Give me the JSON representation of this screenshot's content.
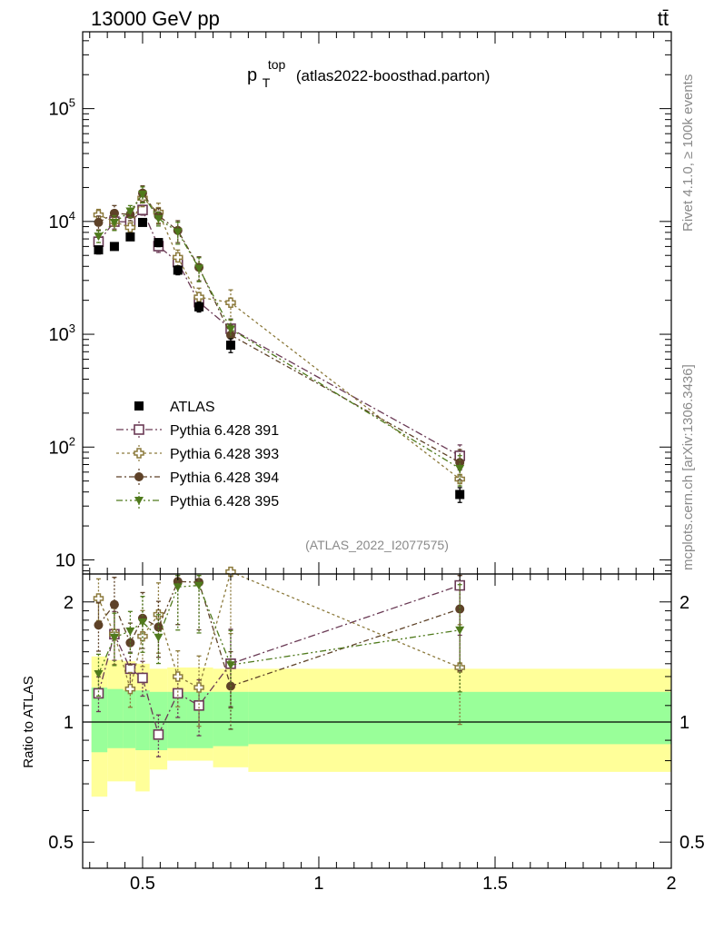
{
  "header": {
    "energy_label": "13000 GeV pp",
    "process_label": "tt̄"
  },
  "side_text": {
    "rivet": "Rivet 4.1.0, ≥ 100k events",
    "source": "mcplots.cern.ch [arXiv:1306.3436]"
  },
  "chart_data": {
    "type": "scatter",
    "title": {
      "main": "p",
      "sup": "top",
      "sub": "T",
      "paren": "(atlas2022-boosthad.parton)"
    },
    "analysis_id": "(ATLAS_2022_I2077575)",
    "x_ticks": [
      0.5,
      1,
      1.5,
      2
    ],
    "x_tick_labels": [
      "0.5",
      "1",
      "1.5",
      "2"
    ],
    "x_range": [
      0.33,
      2.0
    ],
    "main": {
      "yscale": "log",
      "ylim": [
        7.5,
        480000
      ],
      "y_ticks": [
        10,
        100,
        1000,
        10000,
        100000
      ],
      "y_tick_labels": [
        {
          "base": "10",
          "exp": ""
        },
        {
          "base": "10",
          "exp": "2"
        },
        {
          "base": "10",
          "exp": "3"
        },
        {
          "base": "10",
          "exp": "4"
        },
        {
          "base": "10",
          "exp": "5"
        }
      ]
    },
    "ratio": {
      "ylabel": "Ratio to ATLAS",
      "yscale": "log",
      "ylim": [
        0.43,
        2.35
      ],
      "y_ticks": [
        0.5,
        1,
        2
      ],
      "y_tick_labels": [
        "0.5",
        "1",
        "2"
      ]
    },
    "bins": [
      {
        "lo": 0.355,
        "hi": 0.4
      },
      {
        "lo": 0.4,
        "hi": 0.445
      },
      {
        "lo": 0.445,
        "hi": 0.48
      },
      {
        "lo": 0.48,
        "hi": 0.52
      },
      {
        "lo": 0.52,
        "hi": 0.57
      },
      {
        "lo": 0.57,
        "hi": 0.625
      },
      {
        "lo": 0.625,
        "hi": 0.7
      },
      {
        "lo": 0.7,
        "hi": 0.8
      },
      {
        "lo": 0.8,
        "hi": 2.0
      }
    ],
    "bands": {
      "green_lo": [
        0.84,
        0.86,
        0.86,
        0.85,
        0.85,
        0.86,
        0.86,
        0.87,
        0.88
      ],
      "green_hi": [
        1.22,
        1.21,
        1.2,
        1.2,
        1.19,
        1.19,
        1.19,
        1.19,
        1.19
      ],
      "yellow_lo": [
        0.65,
        0.71,
        0.71,
        0.67,
        0.76,
        0.8,
        0.8,
        0.77,
        0.75
      ],
      "yellow_hi": [
        1.46,
        1.43,
        1.42,
        1.4,
        1.36,
        1.37,
        1.37,
        1.36,
        1.36
      ]
    },
    "reference": {
      "name": "ATLAS",
      "color": "#000000",
      "marker": "square",
      "x": [
        0.375,
        0.42,
        0.465,
        0.5,
        0.545,
        0.6,
        0.66,
        0.75,
        1.4
      ],
      "y": [
        5600,
        6000,
        7300,
        9800,
        6500,
        3700,
        1750,
        800,
        38
      ],
      "err": [
        0.08,
        0.07,
        0.07,
        0.07,
        0.08,
        0.09,
        0.1,
        0.14,
        0.15
      ]
    },
    "series": [
      {
        "name": "Pythia 6.428 391",
        "color": "#6a3a55",
        "marker": "open-square",
        "dash": "8,3,2,3",
        "x": [
          0.375,
          0.42,
          0.465,
          0.5,
          0.545,
          0.6,
          0.66,
          0.75,
          1.4
        ],
        "ratio": [
          1.18,
          1.66,
          1.36,
          1.29,
          0.93,
          1.18,
          1.1,
          1.4,
          2.2
        ],
        "ratio_err": [
          0.1,
          0.14,
          0.1,
          0.1,
          0.12,
          0.13,
          0.16,
          0.22,
          0.25
        ]
      },
      {
        "name": "Pythia 6.428 393",
        "color": "#8c7a3c",
        "marker": "open-cross",
        "dash": "3,3",
        "x": [
          0.375,
          0.42,
          0.465,
          0.5,
          0.545,
          0.6,
          0.66,
          0.75,
          1.4
        ],
        "ratio": [
          2.04,
          1.66,
          1.21,
          1.64,
          1.86,
          1.3,
          1.22,
          2.38,
          1.37
        ],
        "ratio_err": [
          0.12,
          0.16,
          0.1,
          0.16,
          0.2,
          0.16,
          0.2,
          0.3,
          0.28
        ]
      },
      {
        "name": "Pythia 6.428 394",
        "color": "#5e4228",
        "marker": "dot",
        "dash": "6,3,2,3",
        "x": [
          0.375,
          0.42,
          0.465,
          0.5,
          0.545,
          0.6,
          0.66,
          0.75,
          1.4
        ],
        "ratio": [
          1.75,
          1.97,
          1.58,
          1.82,
          1.73,
          2.25,
          2.24,
          1.23,
          1.92
        ],
        "ratio_err": [
          0.14,
          0.17,
          0.12,
          0.16,
          0.16,
          0.22,
          0.24,
          0.22,
          0.3
        ]
      },
      {
        "name": "Pythia 6.428 395",
        "color": "#4f7a1c",
        "marker": "triangle-down",
        "dash": "7,3,2,3,2,3",
        "x": [
          0.375,
          0.42,
          0.465,
          0.5,
          0.545,
          0.6,
          0.66,
          0.75,
          1.4
        ],
        "ratio": [
          1.32,
          1.63,
          1.69,
          1.78,
          1.63,
          2.18,
          2.2,
          1.39,
          1.7
        ],
        "ratio_err": [
          0.12,
          0.15,
          0.12,
          0.16,
          0.14,
          0.22,
          0.24,
          0.22,
          0.3
        ]
      }
    ]
  }
}
